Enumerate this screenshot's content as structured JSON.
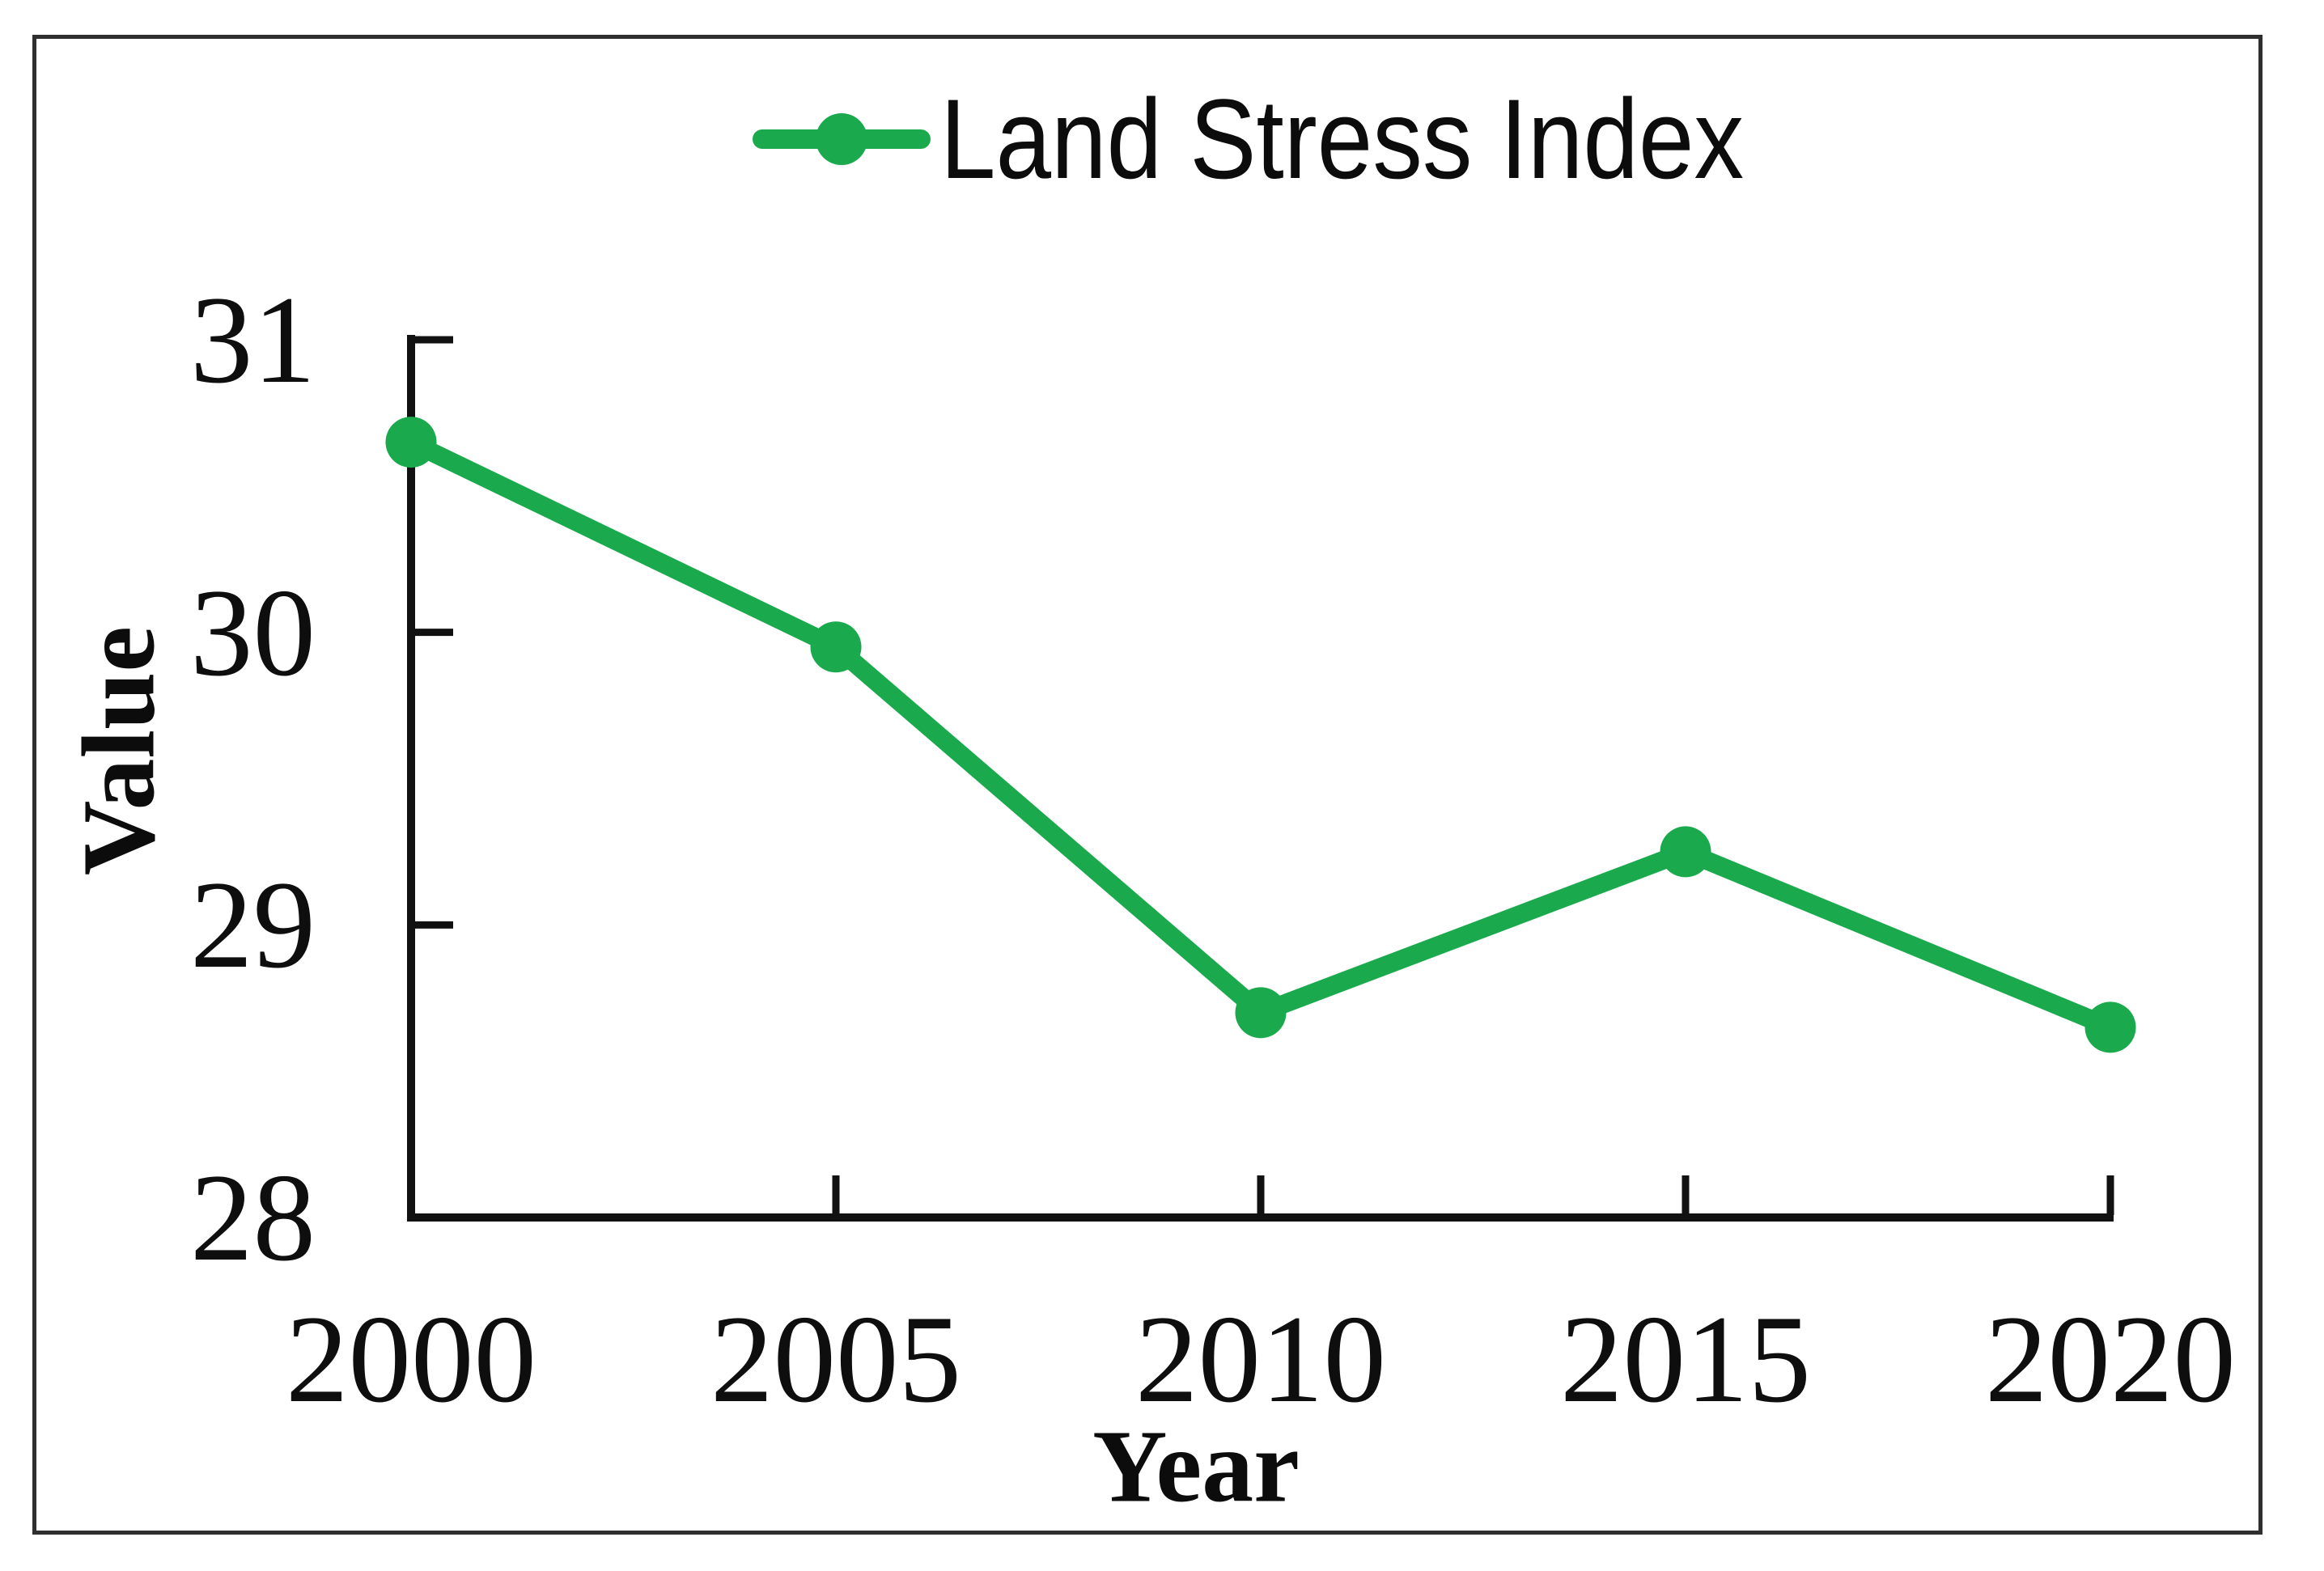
{
  "figure": {
    "background": "#ffffff",
    "frame_color": "#2f2f2f",
    "axis_color": "#111111"
  },
  "legend": {
    "label": "Land Stress Index",
    "marker": "circle-on-line",
    "color": "#1aa94d",
    "position": "top-center"
  },
  "chart_data": {
    "type": "line",
    "title": "",
    "xlabel": "Year",
    "ylabel": "Value",
    "x": [
      2000,
      2005,
      2010,
      2015,
      2020
    ],
    "series": [
      {
        "name": "Land Stress Index",
        "values": [
          30.65,
          29.95,
          28.7,
          29.25,
          28.65
        ],
        "color": "#1aa94d",
        "marker": "circle",
        "line_width": 23
      }
    ],
    "x_ticks": [
      "2000",
      "2005",
      "2010",
      "2015",
      "2020"
    ],
    "y_ticks": [
      "31",
      "30",
      "29",
      "28"
    ],
    "y_tick_values": [
      31,
      30,
      29,
      28
    ],
    "x_tick_values": [
      2000,
      2005,
      2010,
      2015,
      2020
    ],
    "xlim": [
      2000,
      2020
    ],
    "ylim": [
      28,
      31
    ],
    "grid": false,
    "tick_direction": "in",
    "legend_position": "top-center"
  }
}
